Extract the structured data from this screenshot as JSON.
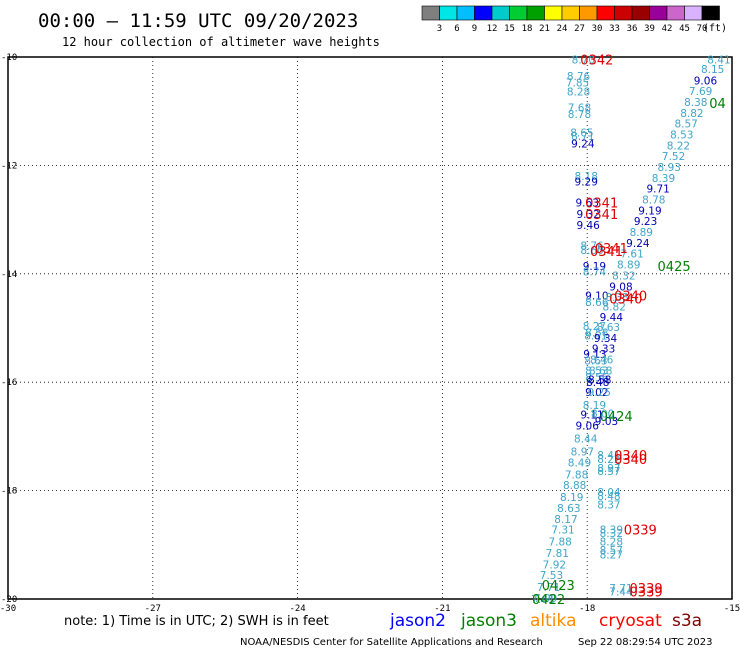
{
  "header": {
    "title": "00:00 – 11:59 UTC 09/20/2023",
    "subtitle": "12 hour collection of altimeter wave heights"
  },
  "colorbar": {
    "colors": [
      "#7f7f7f",
      "#00e5e5",
      "#00bfff",
      "#0000ff",
      "#00cccc",
      "#00cc33",
      "#00a000",
      "#ffff00",
      "#ffcc00",
      "#ff9900",
      "#ff0000",
      "#cc0000",
      "#990000",
      "#990099",
      "#cc66cc",
      "#d9b3ff",
      "#000000"
    ],
    "labels": [
      "3",
      "6",
      "9",
      "12",
      "15",
      "18",
      "21",
      "24",
      "27",
      "30",
      "33",
      "36",
      "39",
      "42",
      "45",
      "70"
    ],
    "unit": "(ft)"
  },
  "map": {
    "lon_ticks": [
      "-30",
      "-27",
      "-24",
      "-21",
      "-18",
      "-15"
    ],
    "lat_ticks": [
      "-10",
      "-12",
      "-14",
      "-16",
      "-18",
      "-20"
    ],
    "lon_range": [
      -30,
      -15
    ],
    "lat_range": [
      -20,
      -10
    ]
  },
  "colors": {
    "light": "#3fa5c8",
    "dark": "#0000b4",
    "red": "#e00000",
    "green": "#008000"
  },
  "tracks": [
    {
      "lon": -18.08,
      "lat": -10.05,
      "v": "8.70",
      "c": "light"
    },
    {
      "lon": -18.18,
      "lat": -10.35,
      "v": "8.76",
      "c": "light"
    },
    {
      "lon": -18.2,
      "lat": -10.47,
      "v": "7.85",
      "c": "light"
    },
    {
      "lon": -18.18,
      "lat": -10.64,
      "v": "8.28",
      "c": "light"
    },
    {
      "lon": -18.16,
      "lat": -10.93,
      "v": "7.68",
      "c": "light"
    },
    {
      "lon": -18.16,
      "lat": -11.05,
      "v": "8.78",
      "c": "light"
    },
    {
      "lon": -18.11,
      "lat": -11.39,
      "v": "8.65",
      "c": "light"
    },
    {
      "lon": -18.09,
      "lat": -11.46,
      "v": "8.71",
      "c": "light"
    },
    {
      "lon": -18.09,
      "lat": -11.6,
      "v": "9.24",
      "c": "dark"
    },
    {
      "lon": -18.02,
      "lat": -12.2,
      "v": "8.18",
      "c": "light"
    },
    {
      "lon": -18.02,
      "lat": -12.3,
      "v": "9.29",
      "c": "dark"
    },
    {
      "lon": -18.0,
      "lat": -12.68,
      "v": "9.63",
      "c": "dark"
    },
    {
      "lon": -17.98,
      "lat": -12.9,
      "v": "9.32",
      "c": "dark"
    },
    {
      "lon": -17.98,
      "lat": -13.1,
      "v": "9.46",
      "c": "dark"
    },
    {
      "lon": -17.9,
      "lat": -13.48,
      "v": "8.76",
      "c": "light"
    },
    {
      "lon": -17.9,
      "lat": -13.56,
      "v": "8.60",
      "c": "light"
    },
    {
      "lon": -17.85,
      "lat": -13.86,
      "v": "9.19",
      "c": "dark"
    },
    {
      "lon": -17.85,
      "lat": -13.96,
      "v": "8.74",
      "c": "light"
    },
    {
      "lon": -17.8,
      "lat": -14.4,
      "v": "9.10",
      "c": "dark"
    },
    {
      "lon": -17.8,
      "lat": -14.52,
      "v": "8.66",
      "c": "light"
    },
    {
      "lon": -17.85,
      "lat": -14.96,
      "v": "8.27",
      "c": "light"
    },
    {
      "lon": -17.8,
      "lat": -15.08,
      "v": "8.58",
      "c": "light"
    },
    {
      "lon": -17.82,
      "lat": -15.14,
      "v": "8.61",
      "c": "light"
    },
    {
      "lon": -17.84,
      "lat": -15.48,
      "v": "9.13",
      "c": "dark"
    },
    {
      "lon": -17.82,
      "lat": -15.6,
      "v": "8.63",
      "c": "light"
    },
    {
      "lon": -17.8,
      "lat": -15.78,
      "v": "8.53",
      "c": "light"
    },
    {
      "lon": -17.8,
      "lat": -15.9,
      "v": "8.56",
      "c": "light"
    },
    {
      "lon": -17.78,
      "lat": -16.0,
      "v": "8.48",
      "c": "dark"
    },
    {
      "lon": -17.8,
      "lat": -16.18,
      "v": "9.02",
      "c": "dark"
    },
    {
      "lon": -17.85,
      "lat": -16.42,
      "v": "8.19",
      "c": "light"
    },
    {
      "lon": -17.9,
      "lat": -16.6,
      "v": "9.11",
      "c": "dark"
    },
    {
      "lon": -17.68,
      "lat": -16.58,
      "v": "8.00",
      "c": "light"
    },
    {
      "lon": -17.6,
      "lat": -16.72,
      "v": "9.03",
      "c": "dark"
    },
    {
      "lon": -18.0,
      "lat": -16.8,
      "v": "9.06",
      "c": "dark"
    },
    {
      "lon": -18.03,
      "lat": -17.04,
      "v": "8.44",
      "c": "light"
    },
    {
      "lon": -18.1,
      "lat": -17.28,
      "v": "8.97",
      "c": "light"
    },
    {
      "lon": -18.16,
      "lat": -17.48,
      "v": "8.49",
      "c": "light"
    },
    {
      "lon": -18.22,
      "lat": -17.7,
      "v": "7.88",
      "c": "light"
    },
    {
      "lon": -18.26,
      "lat": -17.9,
      "v": "8.88",
      "c": "light"
    },
    {
      "lon": -18.32,
      "lat": -18.12,
      "v": "8.19",
      "c": "light"
    },
    {
      "lon": -18.38,
      "lat": -18.32,
      "v": "8.63",
      "c": "light"
    },
    {
      "lon": -18.44,
      "lat": -18.52,
      "v": "8.17",
      "c": "light"
    },
    {
      "lon": -18.5,
      "lat": -18.72,
      "v": "7.31",
      "c": "light"
    },
    {
      "lon": -18.56,
      "lat": -18.94,
      "v": "7.88",
      "c": "light"
    },
    {
      "lon": -18.62,
      "lat": -19.15,
      "v": "7.81",
      "c": "light"
    },
    {
      "lon": -18.68,
      "lat": -19.36,
      "v": "7.92",
      "c": "light"
    },
    {
      "lon": -18.74,
      "lat": -19.56,
      "v": "7.53",
      "c": "light"
    },
    {
      "lon": -18.8,
      "lat": -19.78,
      "v": "7.71",
      "c": "light"
    },
    {
      "lon": -18.86,
      "lat": -19.98,
      "v": "7.99",
      "c": "light"
    },
    {
      "lon": -18.92,
      "lat": -20.0,
      "v": "7.61",
      "c": "light"
    },
    {
      "lon": -17.55,
      "lat": -17.34,
      "v": "8.41",
      "c": "light"
    },
    {
      "lon": -17.55,
      "lat": -17.42,
      "v": "8.22",
      "c": "light"
    },
    {
      "lon": -17.55,
      "lat": -17.58,
      "v": "8.97",
      "c": "light"
    },
    {
      "lon": -17.55,
      "lat": -17.64,
      "v": "8.57",
      "c": "light"
    },
    {
      "lon": -17.55,
      "lat": -18.03,
      "v": "8.04",
      "c": "light"
    },
    {
      "lon": -17.55,
      "lat": -18.1,
      "v": "8.48",
      "c": "light"
    },
    {
      "lon": -17.55,
      "lat": -18.26,
      "v": "8.37",
      "c": "light"
    },
    {
      "lon": -17.5,
      "lat": -18.72,
      "v": "8.39",
      "c": "light"
    },
    {
      "lon": -17.5,
      "lat": -18.78,
      "v": "8.32",
      "c": "light"
    },
    {
      "lon": -17.5,
      "lat": -18.94,
      "v": "8.28",
      "c": "light"
    },
    {
      "lon": -17.5,
      "lat": -19.1,
      "v": "8.57",
      "c": "light"
    },
    {
      "lon": -17.5,
      "lat": -19.18,
      "v": "8.27",
      "c": "light"
    },
    {
      "lon": -17.3,
      "lat": -19.8,
      "v": "7.71",
      "c": "light"
    },
    {
      "lon": -17.3,
      "lat": -19.86,
      "v": "7.44",
      "c": "light"
    },
    {
      "lon": -15.27,
      "lat": -10.05,
      "v": "8.41",
      "c": "light"
    },
    {
      "lon": -15.4,
      "lat": -10.22,
      "v": "8.15",
      "c": "light"
    },
    {
      "lon": -15.55,
      "lat": -10.43,
      "v": "9.06",
      "c": "dark"
    },
    {
      "lon": -15.65,
      "lat": -10.63,
      "v": "7.69",
      "c": "light"
    },
    {
      "lon": -15.75,
      "lat": -10.83,
      "v": "8.38",
      "c": "light"
    },
    {
      "lon": -15.83,
      "lat": -11.03,
      "v": "8.82",
      "c": "light"
    },
    {
      "lon": -15.95,
      "lat": -11.23,
      "v": "8.57",
      "c": "light"
    },
    {
      "lon": -16.04,
      "lat": -11.43,
      "v": "8.53",
      "c": "light"
    },
    {
      "lon": -16.11,
      "lat": -11.63,
      "v": "8.22",
      "c": "light"
    },
    {
      "lon": -16.21,
      "lat": -11.83,
      "v": "7.52",
      "c": "light"
    },
    {
      "lon": -16.3,
      "lat": -12.03,
      "v": "8.93",
      "c": "light"
    },
    {
      "lon": -16.42,
      "lat": -12.23,
      "v": "8.39",
      "c": "light"
    },
    {
      "lon": -16.53,
      "lat": -12.43,
      "v": "9.71",
      "c": "dark"
    },
    {
      "lon": -16.62,
      "lat": -12.63,
      "v": "8.78",
      "c": "light"
    },
    {
      "lon": -16.7,
      "lat": -12.83,
      "v": "9.19",
      "c": "dark"
    },
    {
      "lon": -16.79,
      "lat": -13.03,
      "v": "9.23",
      "c": "dark"
    },
    {
      "lon": -16.88,
      "lat": -13.23,
      "v": "8.89",
      "c": "light"
    },
    {
      "lon": -16.95,
      "lat": -13.43,
      "v": "9.24",
      "c": "dark"
    },
    {
      "lon": -17.07,
      "lat": -13.63,
      "v": "7.61",
      "c": "light"
    },
    {
      "lon": -17.14,
      "lat": -13.83,
      "v": "8.89",
      "c": "light"
    },
    {
      "lon": -17.24,
      "lat": -14.03,
      "v": "8.32",
      "c": "light"
    },
    {
      "lon": -17.3,
      "lat": -14.23,
      "v": "9.08",
      "c": "dark"
    },
    {
      "lon": -17.38,
      "lat": -14.43,
      "v": "8.33",
      "c": "light"
    },
    {
      "lon": -17.44,
      "lat": -14.6,
      "v": "8.82",
      "c": "light"
    },
    {
      "lon": -17.5,
      "lat": -14.8,
      "v": "9.44",
      "c": "dark"
    },
    {
      "lon": -17.56,
      "lat": -14.98,
      "v": "8.63",
      "c": "light"
    },
    {
      "lon": -17.62,
      "lat": -15.18,
      "v": "9.34",
      "c": "dark"
    },
    {
      "lon": -17.66,
      "lat": -15.38,
      "v": "9.33",
      "c": "dark"
    },
    {
      "lon": -17.7,
      "lat": -15.58,
      "v": "8.46",
      "c": "light"
    },
    {
      "lon": -17.72,
      "lat": -15.78,
      "v": "8.68",
      "c": "light"
    },
    {
      "lon": -17.74,
      "lat": -15.95,
      "v": "8.58",
      "c": "dark"
    },
    {
      "lon": -17.75,
      "lat": -16.18,
      "v": "9.25",
      "c": "light"
    }
  ],
  "passes": [
    {
      "lon": -17.8,
      "lat": -10.05,
      "v": "0342",
      "c": "red"
    },
    {
      "lon": -15.3,
      "lat": -10.85,
      "v": "04",
      "c": "green"
    },
    {
      "lon": -17.7,
      "lat": -12.68,
      "v": "0341",
      "c": "red"
    },
    {
      "lon": -17.7,
      "lat": -12.9,
      "v": "0341",
      "c": "red"
    },
    {
      "lon": -17.5,
      "lat": -13.52,
      "v": "0341",
      "c": "red"
    },
    {
      "lon": -17.6,
      "lat": -13.58,
      "v": "0341",
      "c": "red"
    },
    {
      "lon": -16.2,
      "lat": -13.86,
      "v": "0425",
      "c": "green"
    },
    {
      "lon": -17.1,
      "lat": -14.4,
      "v": "0340",
      "c": "red"
    },
    {
      "lon": -17.2,
      "lat": -14.46,
      "v": "0340",
      "c": "red"
    },
    {
      "lon": -17.4,
      "lat": -16.62,
      "v": "0424",
      "c": "green"
    },
    {
      "lon": -17.1,
      "lat": -17.34,
      "v": "0340",
      "c": "red"
    },
    {
      "lon": -17.1,
      "lat": -17.42,
      "v": "0340",
      "c": "red"
    },
    {
      "lon": -16.9,
      "lat": -18.72,
      "v": "0339",
      "c": "red"
    },
    {
      "lon": -18.6,
      "lat": -19.74,
      "v": "0423",
      "c": "green"
    },
    {
      "lon": -16.78,
      "lat": -19.8,
      "v": "0339",
      "c": "red"
    },
    {
      "lon": -16.78,
      "lat": -19.86,
      "v": "0339",
      "c": "red"
    },
    {
      "lon": -18.8,
      "lat": -20.0,
      "v": "0422",
      "c": "green"
    }
  ],
  "note": "note: 1) Time is in UTC; 2) SWH is in feet",
  "legend": [
    {
      "name": "jason2",
      "color": "#0000ff"
    },
    {
      "name": "jason3",
      "color": "#008000"
    },
    {
      "name": "altika",
      "color": "#ff8c00"
    },
    {
      "name": "cryosat",
      "color": "#ff0000"
    },
    {
      "name": "s3a",
      "color": "#800000"
    }
  ],
  "footer": {
    "credit": "NOAA/NESDIS Center for Satellite Applications and Research",
    "timestamp": "Sep 22 08:29:54 UTC 2023"
  }
}
